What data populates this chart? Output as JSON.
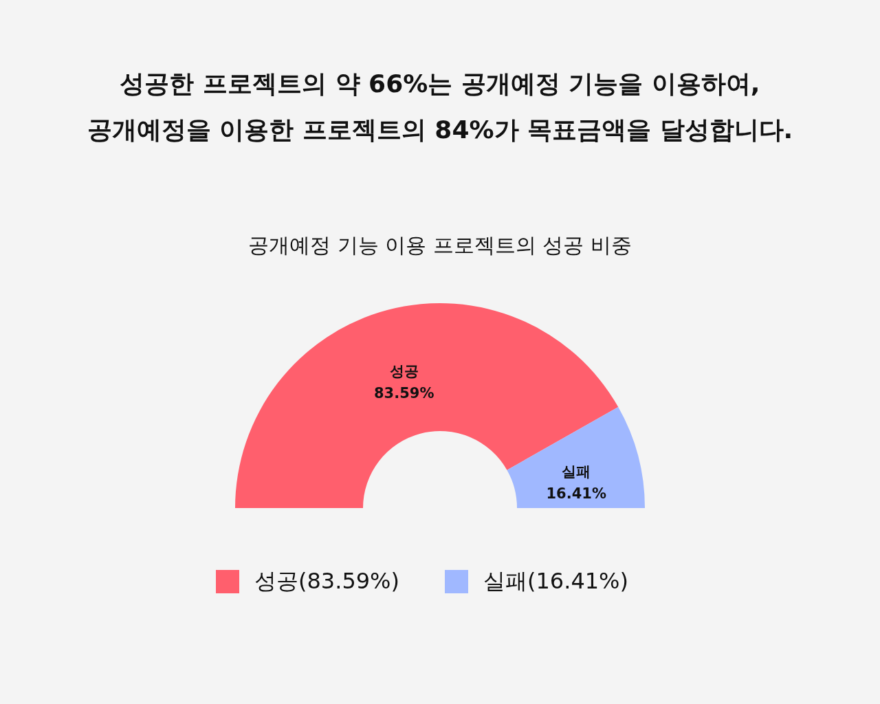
{
  "chart_data": {
    "type": "donut",
    "title": "성공한 프로젝트의 약 66%는 공개예정 기능을 이용하여,\n공개예정을 이용한 프로젝트의 84%가 목표금액을 달성합니다.",
    "subtitle": "공개예정 기능 이용 프로젝트의 성공 비중",
    "categories": [
      "성공(83.59%)",
      "실패(16.41%)"
    ],
    "value_labels": [
      "성공\n83.59%",
      "실패\n16.41%"
    ],
    "values": [
      83.59,
      16.41
    ],
    "colors": [
      "#ff5f6d",
      "#a0b8ff"
    ],
    "legend": "bottom"
  }
}
